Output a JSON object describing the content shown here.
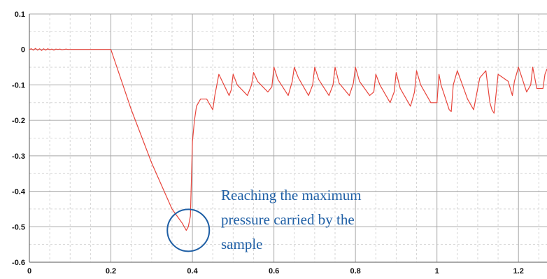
{
  "chart_data": {
    "type": "line",
    "title": "",
    "xlabel": "",
    "ylabel": "",
    "xlim": [
      0,
      1.27
    ],
    "ylim": [
      -0.6,
      0.1
    ],
    "x_ticks": [
      0,
      0.2,
      0.4,
      0.6,
      0.8,
      1.0,
      1.2
    ],
    "x_tick_labels": [
      "0",
      "0.2",
      "0.4",
      "0.6",
      "0.8",
      "1",
      "1.2"
    ],
    "y_ticks": [
      0.1,
      0,
      -0.1,
      -0.2,
      -0.3,
      -0.4,
      -0.5,
      -0.6
    ],
    "y_tick_labels": [
      "0.1",
      "0",
      "-0.1",
      "-0.2",
      "-0.3",
      "-0.4",
      "-0.5",
      "-0.6"
    ],
    "grid": true,
    "legend": "none",
    "line_color": "#e8453c",
    "annotation": {
      "lines": [
        "Reaching the maximum",
        "pressure carried by the",
        "sample"
      ],
      "color": "#1f5fa5",
      "circle_center": {
        "x": 0.39,
        "y": -0.51
      }
    },
    "series": [
      {
        "x": [
          0,
          0.005,
          0.01,
          0.015,
          0.02,
          0.025,
          0.03,
          0.035,
          0.04,
          0.045,
          0.05,
          0.055,
          0.06,
          0.065,
          0.07,
          0.075,
          0.08,
          0.085,
          0.09,
          0.095,
          0.1,
          0.11,
          0.12,
          0.13,
          0.14,
          0.15,
          0.16,
          0.17,
          0.18,
          0.19,
          0.2,
          0.25,
          0.3,
          0.35,
          0.375,
          0.385,
          0.39,
          0.395,
          0.4,
          0.405,
          0.41,
          0.42,
          0.435,
          0.45,
          0.455,
          0.465,
          0.49,
          0.495,
          0.5,
          0.51,
          0.535,
          0.545,
          0.55,
          0.56,
          0.585,
          0.595,
          0.6,
          0.61,
          0.635,
          0.645,
          0.65,
          0.66,
          0.685,
          0.695,
          0.7,
          0.71,
          0.735,
          0.745,
          0.75,
          0.76,
          0.785,
          0.795,
          0.8,
          0.81,
          0.835,
          0.845,
          0.85,
          0.86,
          0.885,
          0.895,
          0.9,
          0.91,
          0.935,
          0.945,
          0.95,
          0.96,
          0.985,
          1.0,
          1.005,
          1.01,
          1.03,
          1.035,
          1.04,
          1.05,
          1.075,
          1.09,
          1.105,
          1.12,
          1.13,
          1.135,
          1.14,
          1.15,
          1.175,
          1.185,
          1.19,
          1.2,
          1.22,
          1.23,
          1.235,
          1.245,
          1.26,
          1.265,
          1.27
        ],
        "y": [
          0.0,
          0.002,
          -0.002,
          0.003,
          -0.002,
          0.002,
          -0.003,
          0.002,
          -0.002,
          0.002,
          -0.001,
          0.001,
          -0.002,
          0.001,
          0.0,
          0.001,
          -0.001,
          0.0,
          0.001,
          0.0,
          0.0,
          0.0,
          0.0,
          0.0,
          0.0,
          0.0,
          0.0,
          0.0,
          0.0,
          0.0,
          0.0,
          -0.17,
          -0.32,
          -0.45,
          -0.49,
          -0.51,
          -0.5,
          -0.47,
          -0.26,
          -0.2,
          -0.16,
          -0.14,
          -0.14,
          -0.17,
          -0.13,
          -0.07,
          -0.13,
          -0.115,
          -0.07,
          -0.1,
          -0.13,
          -0.1,
          -0.065,
          -0.09,
          -0.12,
          -0.105,
          -0.05,
          -0.085,
          -0.13,
          -0.09,
          -0.05,
          -0.08,
          -0.13,
          -0.1,
          -0.05,
          -0.085,
          -0.13,
          -0.1,
          -0.05,
          -0.095,
          -0.13,
          -0.095,
          -0.05,
          -0.09,
          -0.13,
          -0.12,
          -0.07,
          -0.1,
          -0.15,
          -0.12,
          -0.065,
          -0.11,
          -0.16,
          -0.12,
          -0.06,
          -0.1,
          -0.15,
          -0.15,
          -0.07,
          -0.1,
          -0.17,
          -0.175,
          -0.1,
          -0.06,
          -0.14,
          -0.17,
          -0.08,
          -0.06,
          -0.15,
          -0.17,
          -0.18,
          -0.07,
          -0.09,
          -0.13,
          -0.09,
          -0.05,
          -0.12,
          -0.1,
          -0.05,
          -0.11,
          -0.11,
          -0.07,
          -0.055
        ]
      }
    ]
  }
}
